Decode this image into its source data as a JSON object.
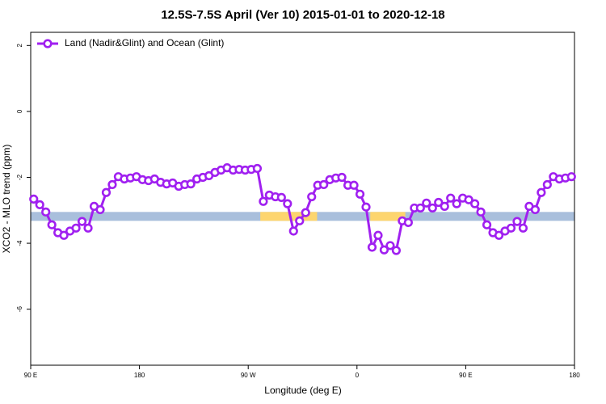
{
  "chart_data": {
    "type": "line",
    "title": "12.5S-7.5S April (Ver 10)   2015-01-01 to 2020-12-18",
    "xlabel": "Longitude (deg E)",
    "ylabel": "XCO2 - MLO trend (ppm)",
    "xlim": [
      90,
      540
    ],
    "ylim": [
      -7.7,
      2.4
    ],
    "xticks": [
      {
        "value": 90,
        "label": "90 E"
      },
      180,
      {
        "value": 270,
        "label": "90 W"
      },
      {
        "value": 360,
        "label": "0"
      },
      {
        "value": 450,
        "label": "90 E"
      },
      {
        "value": 540,
        "label": "180"
      }
    ],
    "yticks": [
      2,
      0,
      -2,
      -4,
      -6
    ],
    "legend": "top-left",
    "band": {
      "ylim": [
        -3.32,
        -3.05
      ],
      "color": "#a9bfdc"
    },
    "land_regions": {
      "color": "#fdd56e",
      "ranges": [
        [
          280,
          327
        ],
        [
          371,
          400
        ]
      ]
    },
    "series": [
      {
        "name": "Land (Nadir&Glint) and Ocean (Glint)",
        "color": "#a020f0",
        "x": [
          92.5,
          97.5,
          102.5,
          107.5,
          112.5,
          117.5,
          122.5,
          127.5,
          132.5,
          137.5,
          142.5,
          147.5,
          152.5,
          157.5,
          162.5,
          167.5,
          172.5,
          177.5,
          182.5,
          187.5,
          192.5,
          197.5,
          202.5,
          207.5,
          212.5,
          217.5,
          222.5,
          227.5,
          232.5,
          237.5,
          242.5,
          247.5,
          252.5,
          257.5,
          262.5,
          267.5,
          272.5,
          277.5,
          282.5,
          287.5,
          292.5,
          297.5,
          302.5,
          307.5,
          312.5,
          317.5,
          322.5,
          327.5,
          332.5,
          337.5,
          342.5,
          347.5,
          352.5,
          357.5,
          362.5,
          367.5,
          372.5,
          377.5,
          382.5,
          387.5,
          392.5,
          397.5,
          402.5,
          407.5,
          412.5,
          417.5,
          422.5,
          427.5,
          432.5,
          437.5,
          442.5,
          447.5,
          452.5,
          457.5,
          462.5,
          467.5,
          472.5,
          477.5,
          482.5,
          487.5,
          492.5,
          497.5,
          502.5,
          507.5,
          512.5,
          517.5,
          522.5,
          527.5,
          532.5,
          537.5
        ],
        "values": [
          -2.66,
          -2.83,
          -3.05,
          -3.44,
          -3.68,
          -3.76,
          -3.63,
          -3.54,
          -3.34,
          -3.54,
          -2.88,
          -2.98,
          -2.46,
          -2.22,
          -1.98,
          -2.05,
          -2.02,
          -1.98,
          -2.07,
          -2.1,
          -2.05,
          -2.15,
          -2.2,
          -2.17,
          -2.27,
          -2.22,
          -2.2,
          -2.05,
          -2.0,
          -1.95,
          -1.85,
          -1.78,
          -1.71,
          -1.78,
          -1.76,
          -1.78,
          -1.76,
          -1.73,
          -2.73,
          -2.54,
          -2.59,
          -2.61,
          -2.8,
          -3.63,
          -3.32,
          -3.07,
          -2.59,
          -2.24,
          -2.22,
          -2.07,
          -2.02,
          -2.0,
          -2.24,
          -2.24,
          -2.51,
          -2.9,
          -4.12,
          -3.76,
          -4.2,
          -4.07,
          -4.22,
          -3.32,
          -3.37,
          -2.93,
          -2.93,
          -2.78,
          -2.93,
          -2.76,
          -2.88,
          -2.63,
          -2.8,
          -2.63,
          -2.68,
          -2.8,
          -3.05,
          -3.44,
          -3.68,
          -3.76,
          -3.63,
          -3.54,
          -3.34,
          -3.54,
          -2.88,
          -2.98,
          -2.46,
          -2.22,
          -1.98,
          -2.05,
          -2.02,
          -1.98
        ]
      }
    ]
  }
}
